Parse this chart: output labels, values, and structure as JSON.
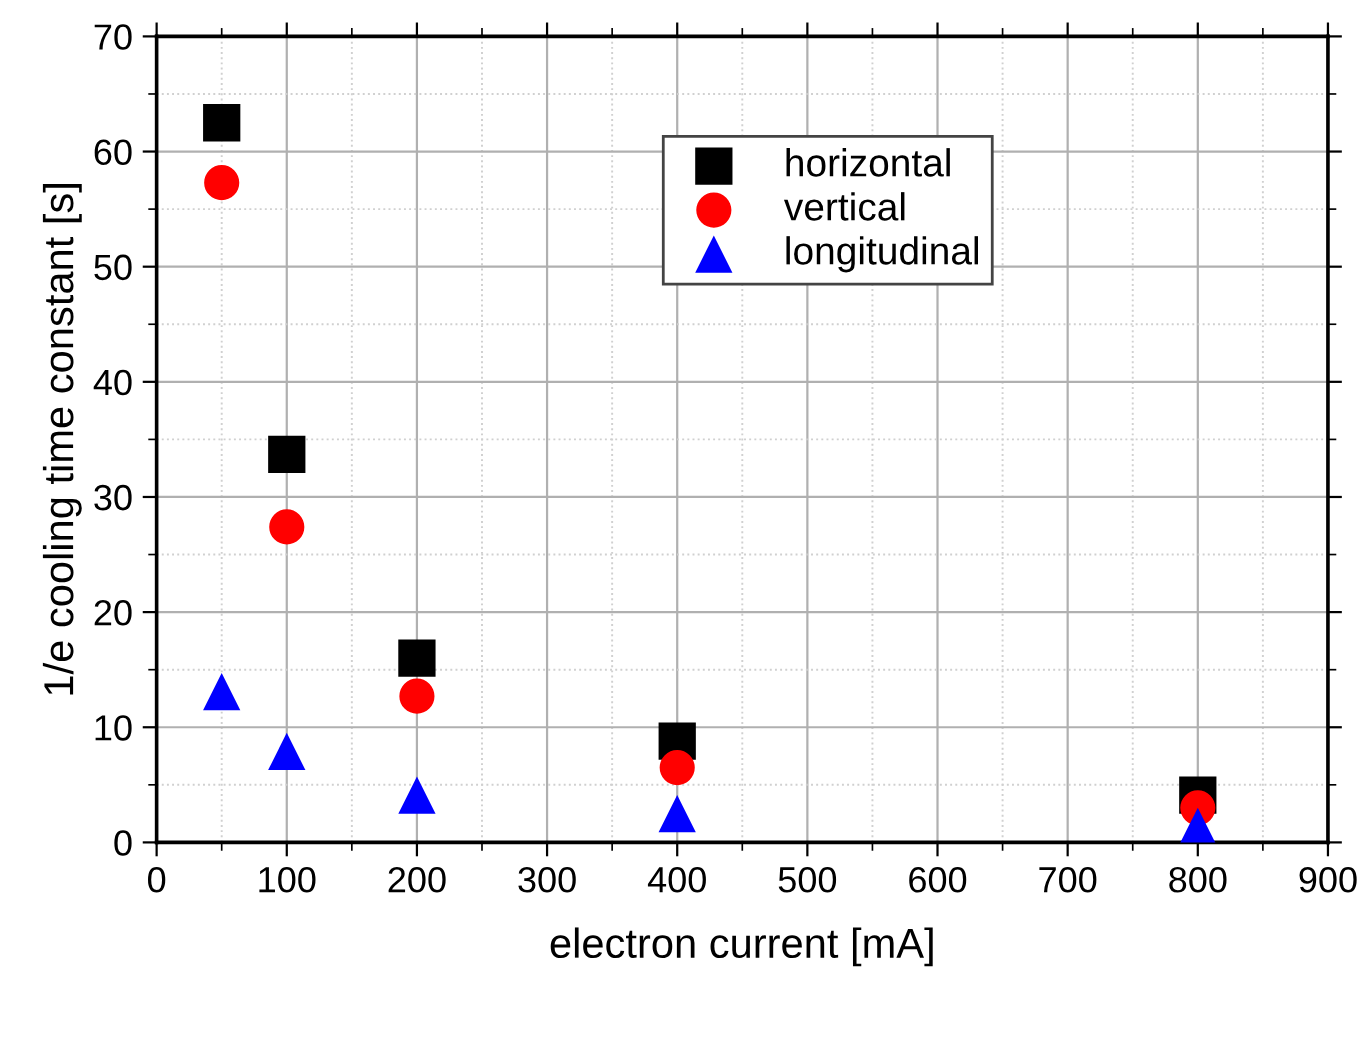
{
  "chart_data": {
    "type": "scatter",
    "xlabel": "electron current [mA]",
    "ylabel": "1/e cooling time constant [s]",
    "x": [
      50,
      100,
      200,
      400,
      800
    ],
    "series": [
      {
        "name": "horizontal",
        "color": "#000000",
        "marker": "square",
        "values": [
          62.5,
          33.7,
          16.0,
          8.8,
          4.1
        ]
      },
      {
        "name": "vertical",
        "color": "#ff0000",
        "marker": "circle",
        "values": [
          57.3,
          27.4,
          12.7,
          6.5,
          3.0
        ]
      },
      {
        "name": "longitudinal",
        "color": "#0000ff",
        "marker": "triangle",
        "values": [
          13.1,
          7.9,
          4.1,
          2.5,
          1.4
        ]
      }
    ],
    "xlim": [
      0,
      900
    ],
    "xticks": [
      0,
      100,
      200,
      300,
      400,
      500,
      600,
      700,
      800,
      900
    ],
    "ylim": [
      0,
      70
    ],
    "yticks": [
      0,
      10,
      20,
      30,
      40,
      50,
      60,
      70
    ],
    "grid": true,
    "legend": "top right"
  }
}
